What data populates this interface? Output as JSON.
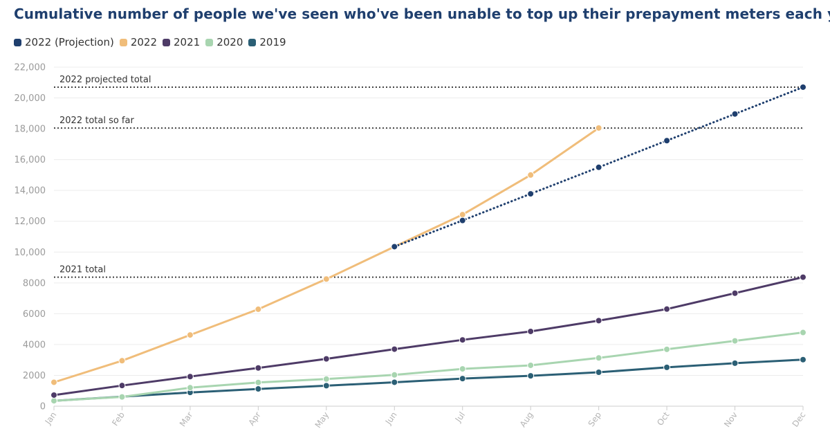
{
  "chart_data": {
    "type": "line",
    "title": "Cumulative number of people we've seen who've been unable to top up their prepayment meters each year",
    "xlabel": "",
    "ylabel": "",
    "ylim": [
      0,
      22000
    ],
    "grid": true,
    "legend_position": "top-left",
    "categories": [
      "Jan",
      "Feb",
      "Mar",
      "Apr",
      "May",
      "Jun",
      "Jul",
      "Aug",
      "Sep",
      "Oct",
      "Nov",
      "Dec"
    ],
    "y_ticks": [
      {
        "value": 0,
        "label": "0"
      },
      {
        "value": 2000,
        "label": "2000"
      },
      {
        "value": 4000,
        "label": "4000"
      },
      {
        "value": 6000,
        "label": "6000"
      },
      {
        "value": 8000,
        "label": "8000"
      },
      {
        "value": 10000,
        "label": "10,000"
      },
      {
        "value": 12000,
        "label": "12,000"
      },
      {
        "value": 14000,
        "label": "14,000"
      },
      {
        "value": 16000,
        "label": "16,000"
      },
      {
        "value": 18000,
        "label": "18,000"
      },
      {
        "value": 20000,
        "label": "20,000"
      },
      {
        "value": 22000,
        "label": "22,000"
      }
    ],
    "series": [
      {
        "name": "2019",
        "color": "#2b5f75",
        "style": "solid",
        "values": [
          350,
          620,
          890,
          1120,
          1330,
          1550,
          1790,
          1970,
          2200,
          2520,
          2790,
          3020
        ]
      },
      {
        "name": "2020",
        "color": "#a8d5b0",
        "style": "solid",
        "values": [
          350,
          600,
          1200,
          1540,
          1760,
          2030,
          2420,
          2650,
          3130,
          3690,
          4240,
          4780
        ]
      },
      {
        "name": "2021",
        "color": "#4e3b67",
        "style": "solid",
        "values": [
          720,
          1340,
          1920,
          2480,
          3070,
          3700,
          4300,
          4850,
          5550,
          6300,
          7330,
          8370
        ]
      },
      {
        "name": "2022",
        "color": "#f0bd7a",
        "style": "solid",
        "values": [
          1550,
          2950,
          4620,
          6290,
          8250,
          10350,
          12430,
          15000,
          18050,
          null,
          null,
          null
        ]
      },
      {
        "name": "2022 (Projection)",
        "color": "#1f3f6e",
        "style": "dotted",
        "values": [
          null,
          null,
          null,
          null,
          null,
          10350,
          12050,
          13780,
          15500,
          17230,
          18960,
          20700
        ]
      }
    ],
    "legend": [
      {
        "name": "2022 (Projection)",
        "color": "#1f3f6e"
      },
      {
        "name": "2022",
        "color": "#f0bd7a"
      },
      {
        "name": "2021",
        "color": "#4e3b67"
      },
      {
        "name": "2020",
        "color": "#a8d5b0"
      },
      {
        "name": "2019",
        "color": "#2b5f75"
      }
    ],
    "reference_lines": [
      {
        "label": "2022 projected total",
        "value": 20700
      },
      {
        "label": "2022 total so far",
        "value": 18050
      },
      {
        "label": "2021 total",
        "value": 8370
      }
    ]
  }
}
